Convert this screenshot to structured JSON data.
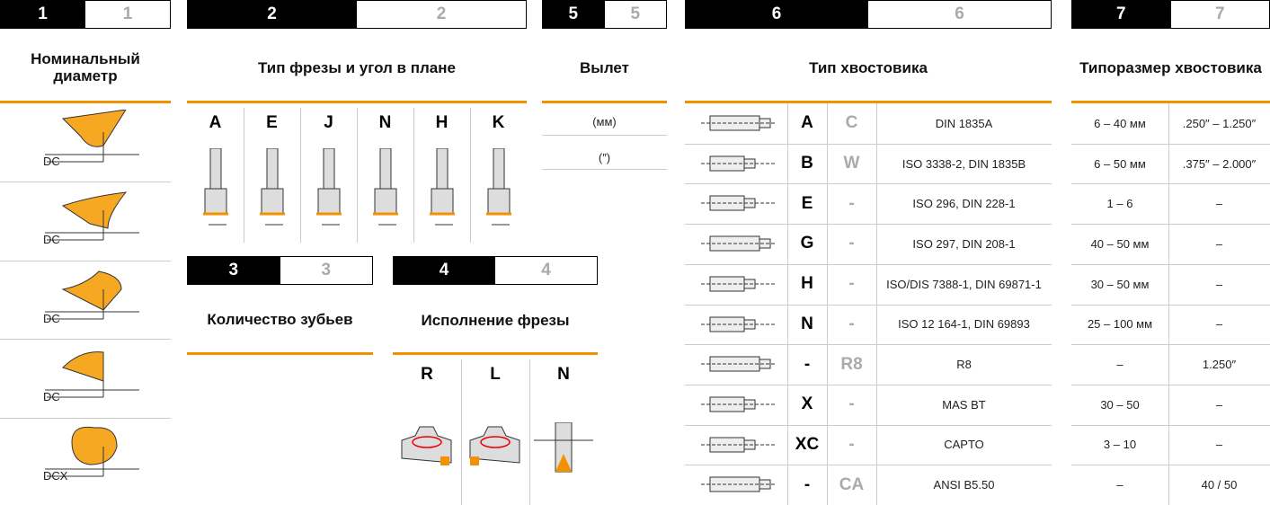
{
  "s1": {
    "num": "1",
    "num_alt": "1",
    "title": "Номинальный диаметр",
    "labels": [
      "DC",
      "DC",
      "DC",
      "DC",
      "DCX"
    ]
  },
  "s2": {
    "num": "2",
    "num_alt": "2",
    "title": "Тип фрезы и угол в плане",
    "columns": [
      "A",
      "E",
      "J",
      "N",
      "H",
      "K"
    ]
  },
  "s3": {
    "num": "3",
    "num_alt": "3",
    "title": "Количество зубьев"
  },
  "s4": {
    "num": "4",
    "num_alt": "4",
    "title": "Исполнение фрезы",
    "columns": [
      "R",
      "L",
      "N"
    ]
  },
  "s5": {
    "num": "5",
    "num_alt": "5",
    "title": "Вылет",
    "units": [
      "(мм)",
      "(″)"
    ]
  },
  "s6": {
    "num": "6",
    "num_alt": "6",
    "title": "Тип хвостовика",
    "rows": [
      [
        "A",
        "C",
        "DIN 1835A"
      ],
      [
        "B",
        "W",
        "ISO 3338-2, DIN 1835B"
      ],
      [
        "E",
        "-",
        "ISO 296, DIN 228-1"
      ],
      [
        "G",
        "-",
        "ISO 297, DIN 208-1"
      ],
      [
        "H",
        "-",
        "ISO/DIS 7388-1, DIN 69871-1"
      ],
      [
        "N",
        "-",
        "ISO 12 164-1, DIN 69893"
      ],
      [
        "-",
        "R8",
        "R8"
      ],
      [
        "X",
        "-",
        "MAS BT"
      ],
      [
        "XC",
        "-",
        "CAPTO"
      ],
      [
        "-",
        "CA",
        "ANSI B5.50"
      ]
    ]
  },
  "s7": {
    "num": "7",
    "num_alt": "7",
    "title": "Типоразмер хвостовика",
    "rows": [
      [
        "6 – 40 мм",
        ".250″ – 1.250″"
      ],
      [
        "6 – 50 мм",
        ".375″ – 2.000″"
      ],
      [
        "1 – 6",
        "–"
      ],
      [
        "40 – 50 мм",
        "–"
      ],
      [
        "30 – 50 мм",
        "–"
      ],
      [
        "25 – 100 мм",
        "–"
      ],
      [
        "–",
        "1.250″"
      ],
      [
        "30 – 50",
        "–"
      ],
      [
        "3 – 10",
        "–"
      ],
      [
        "–",
        "40 / 50"
      ]
    ]
  }
}
